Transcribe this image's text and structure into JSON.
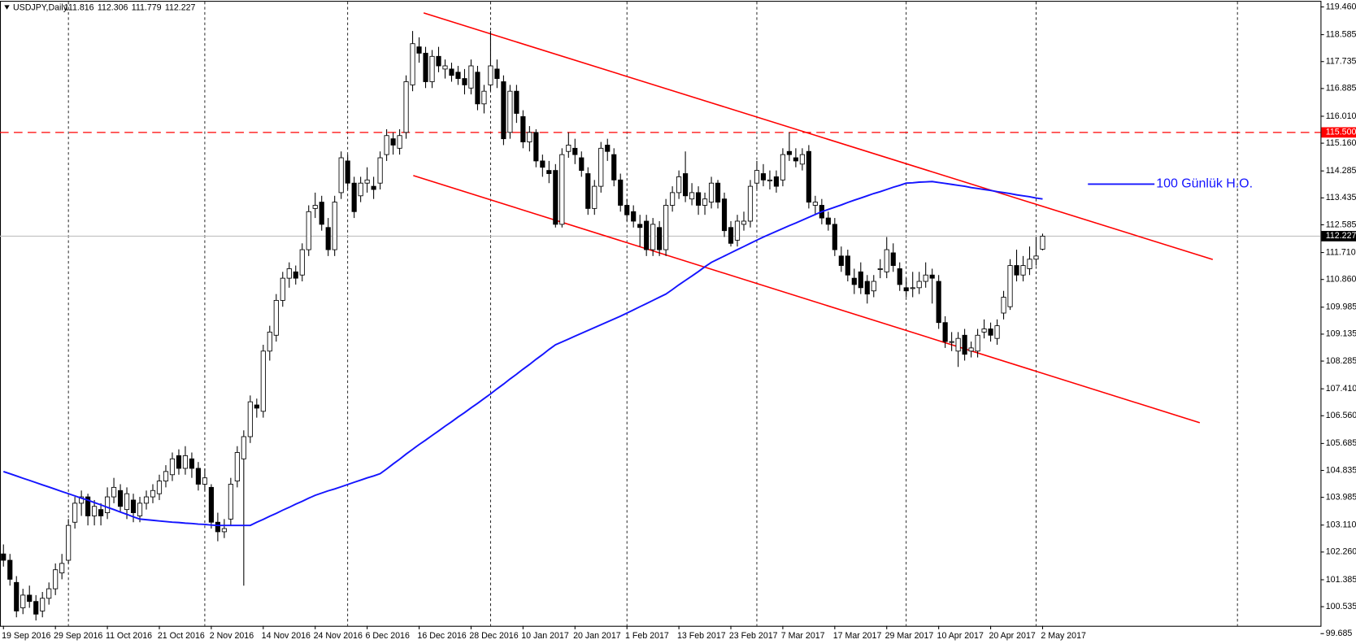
{
  "chart_data": {
    "type": "candlestick",
    "title": "USDJPY,Daily",
    "categories": [
      "19 Sep 2016",
      null,
      null,
      null,
      null,
      null,
      null,
      null,
      "29 Sep 2016",
      null,
      null,
      null,
      null,
      null,
      null,
      null,
      "11 Oct 2016",
      null,
      null,
      null,
      null,
      null,
      null,
      null,
      "21 Oct 2016",
      null,
      null,
      null,
      null,
      null,
      null,
      null,
      "2 Nov 2016",
      null,
      null,
      null,
      null,
      null,
      null,
      null,
      "14 Nov 2016",
      null,
      null,
      null,
      null,
      null,
      null,
      null,
      "24 Nov 2016",
      null,
      null,
      null,
      null,
      null,
      null,
      null,
      "6 Dec 2016",
      null,
      null,
      null,
      null,
      null,
      null,
      null,
      "16 Dec 2016",
      null,
      null,
      null,
      null,
      null,
      null,
      null,
      "28 Dec 2016",
      null,
      null,
      null,
      null,
      null,
      null,
      null,
      "10 Jan 2017",
      null,
      null,
      null,
      null,
      null,
      null,
      null,
      "20 Jan 2017",
      null,
      null,
      null,
      null,
      null,
      null,
      null,
      "1 Feb 2017",
      null,
      null,
      null,
      null,
      null,
      null,
      null,
      "13 Feb 2017",
      null,
      null,
      null,
      null,
      null,
      null,
      null,
      "23 Feb 2017",
      null,
      null,
      null,
      null,
      null,
      null,
      null,
      "7 Mar 2017",
      null,
      null,
      null,
      null,
      null,
      null,
      null,
      "17 Mar 2017",
      null,
      null,
      null,
      null,
      null,
      null,
      null,
      "29 Mar 2017",
      null,
      null,
      null,
      null,
      null,
      null,
      null,
      "10 Apr 2017",
      null,
      null,
      null,
      null,
      null,
      null,
      null,
      "20 Apr 2017",
      null,
      null,
      null,
      null,
      null,
      null,
      null,
      "2 May 2017"
    ],
    "ohlc": [
      [
        102.2,
        102.5,
        101.8,
        102.0
      ],
      [
        102.0,
        102.2,
        101.2,
        101.4
      ],
      [
        101.3,
        101.5,
        100.2,
        100.4
      ],
      [
        100.5,
        101.1,
        100.3,
        100.9
      ],
      [
        100.9,
        101.2,
        100.5,
        100.7
      ],
      [
        100.7,
        100.9,
        100.1,
        100.3
      ],
      [
        100.4,
        101.0,
        100.2,
        100.8
      ],
      [
        100.8,
        101.3,
        100.6,
        101.1
      ],
      [
        101.1,
        101.9,
        100.9,
        101.7
      ],
      [
        101.6,
        102.2,
        101.4,
        101.9
      ],
      [
        102.0,
        103.3,
        101.9,
        103.1
      ],
      [
        103.2,
        104.0,
        103.0,
        103.8
      ],
      [
        103.8,
        104.2,
        103.4,
        104.0
      ],
      [
        104.0,
        104.1,
        103.1,
        103.4
      ],
      [
        103.4,
        103.9,
        103.1,
        103.7
      ],
      [
        103.6,
        103.8,
        103.1,
        103.4
      ],
      [
        103.5,
        104.3,
        103.3,
        104.0
      ],
      [
        104.0,
        104.6,
        103.8,
        104.3
      ],
      [
        104.2,
        104.4,
        103.5,
        103.7
      ],
      [
        103.6,
        104.3,
        103.3,
        104.1
      ],
      [
        103.9,
        104.1,
        103.2,
        103.5
      ],
      [
        103.4,
        104.0,
        103.2,
        103.8
      ],
      [
        103.8,
        104.2,
        103.6,
        104.0
      ],
      [
        104.0,
        104.4,
        103.8,
        104.2
      ],
      [
        104.1,
        104.7,
        103.9,
        104.5
      ],
      [
        104.5,
        105.0,
        104.3,
        104.8
      ],
      [
        104.7,
        105.4,
        104.5,
        105.2
      ],
      [
        105.3,
        105.5,
        104.7,
        104.9
      ],
      [
        104.9,
        105.6,
        104.7,
        105.3
      ],
      [
        105.2,
        105.4,
        104.6,
        104.9
      ],
      [
        104.9,
        105.1,
        104.2,
        104.4
      ],
      [
        104.4,
        104.9,
        104.2,
        104.6
      ],
      [
        104.3,
        104.4,
        103.0,
        103.2
      ],
      [
        103.2,
        103.5,
        102.6,
        102.9
      ],
      [
        102.9,
        103.3,
        102.7,
        103.0
      ],
      [
        103.3,
        104.6,
        103.1,
        104.4
      ],
      [
        104.5,
        105.6,
        104.3,
        105.4
      ],
      [
        105.2,
        106.1,
        101.2,
        105.9
      ],
      [
        105.9,
        107.2,
        105.7,
        107.0
      ],
      [
        106.9,
        107.1,
        106.5,
        106.8
      ],
      [
        106.7,
        108.8,
        106.5,
        108.6
      ],
      [
        108.6,
        109.4,
        108.3,
        109.2
      ],
      [
        109.1,
        110.4,
        108.9,
        110.2
      ],
      [
        110.2,
        111.1,
        110.0,
        110.9
      ],
      [
        110.9,
        111.4,
        110.6,
        111.2
      ],
      [
        111.1,
        111.3,
        110.7,
        110.9
      ],
      [
        111.0,
        112.0,
        110.8,
        111.8
      ],
      [
        111.8,
        113.2,
        111.6,
        113.0
      ],
      [
        113.1,
        113.6,
        112.8,
        113.2
      ],
      [
        113.3,
        113.5,
        112.4,
        112.6
      ],
      [
        112.5,
        112.8,
        111.6,
        111.8
      ],
      [
        111.8,
        113.5,
        111.6,
        113.3
      ],
      [
        113.6,
        114.9,
        113.4,
        114.7
      ],
      [
        114.6,
        114.8,
        113.7,
        113.9
      ],
      [
        113.9,
        114.1,
        112.8,
        113.0
      ],
      [
        113.5,
        114.1,
        113.3,
        113.9
      ],
      [
        113.9,
        114.4,
        113.6,
        114.0
      ],
      [
        113.8,
        114.1,
        113.4,
        113.7
      ],
      [
        113.9,
        114.9,
        113.7,
        114.7
      ],
      [
        114.8,
        115.6,
        114.6,
        115.4
      ],
      [
        115.3,
        115.5,
        114.8,
        115.1
      ],
      [
        115.0,
        115.6,
        114.8,
        115.4
      ],
      [
        115.5,
        117.3,
        115.3,
        117.1
      ],
      [
        117.0,
        118.7,
        116.8,
        118.3
      ],
      [
        118.2,
        118.5,
        117.7,
        118.0
      ],
      [
        118.0,
        118.2,
        116.9,
        117.1
      ],
      [
        117.1,
        118.1,
        116.9,
        117.9
      ],
      [
        117.9,
        118.2,
        117.4,
        117.6
      ],
      [
        117.5,
        117.8,
        117.2,
        117.6
      ],
      [
        117.5,
        117.7,
        117.1,
        117.3
      ],
      [
        117.4,
        117.6,
        117.0,
        117.2
      ],
      [
        117.2,
        117.5,
        116.7,
        117.0
      ],
      [
        116.9,
        117.8,
        116.7,
        117.6
      ],
      [
        117.4,
        117.6,
        116.2,
        116.4
      ],
      [
        116.4,
        117.0,
        116.1,
        116.8
      ],
      [
        117.0,
        118.7,
        116.8,
        117.6
      ],
      [
        117.5,
        117.8,
        116.9,
        117.2
      ],
      [
        117.1,
        117.3,
        115.1,
        115.3
      ],
      [
        115.5,
        117.0,
        115.3,
        116.8
      ],
      [
        116.8,
        117.0,
        115.8,
        116.1
      ],
      [
        116.0,
        116.2,
        115.0,
        115.2
      ],
      [
        115.2,
        115.7,
        114.9,
        115.5
      ],
      [
        115.5,
        115.6,
        114.4,
        114.6
      ],
      [
        114.6,
        114.8,
        114.1,
        114.4
      ],
      [
        114.3,
        114.6,
        113.9,
        114.2
      ],
      [
        114.3,
        114.5,
        112.5,
        112.6
      ],
      [
        112.6,
        115.0,
        112.5,
        114.8
      ],
      [
        114.9,
        115.5,
        114.7,
        115.1
      ],
      [
        115.0,
        115.3,
        114.5,
        114.8
      ],
      [
        114.7,
        114.9,
        114.1,
        114.3
      ],
      [
        114.2,
        114.4,
        112.9,
        113.1
      ],
      [
        113.1,
        114.0,
        112.9,
        113.8
      ],
      [
        113.8,
        115.2,
        113.6,
        115.0
      ],
      [
        115.1,
        115.3,
        114.6,
        114.9
      ],
      [
        114.8,
        115.0,
        113.8,
        114.0
      ],
      [
        114.0,
        114.2,
        113.0,
        113.2
      ],
      [
        113.2,
        113.4,
        112.7,
        112.9
      ],
      [
        113.0,
        113.2,
        112.5,
        112.7
      ],
      [
        112.6,
        112.9,
        111.9,
        112.5
      ],
      [
        112.7,
        112.9,
        111.6,
        111.8
      ],
      [
        111.8,
        112.8,
        111.6,
        112.6
      ],
      [
        112.5,
        112.7,
        111.6,
        111.8
      ],
      [
        111.8,
        113.4,
        111.6,
        113.2
      ],
      [
        113.2,
        113.8,
        113.0,
        113.6
      ],
      [
        113.6,
        114.3,
        113.4,
        114.1
      ],
      [
        114.2,
        114.9,
        113.3,
        113.5
      ],
      [
        113.4,
        113.9,
        113.2,
        113.6
      ],
      [
        113.6,
        113.8,
        112.9,
        113.2
      ],
      [
        113.2,
        113.6,
        112.9,
        113.4
      ],
      [
        113.3,
        114.1,
        113.1,
        113.9
      ],
      [
        113.9,
        114.0,
        113.1,
        113.3
      ],
      [
        113.4,
        113.6,
        112.2,
        112.4
      ],
      [
        112.5,
        112.7,
        111.9,
        112.0
      ],
      [
        112.1,
        112.9,
        111.9,
        112.7
      ],
      [
        112.6,
        113.0,
        112.4,
        112.7
      ],
      [
        112.7,
        114.0,
        112.5,
        113.8
      ],
      [
        113.9,
        114.6,
        113.7,
        114.3
      ],
      [
        114.2,
        114.5,
        113.8,
        114.0
      ],
      [
        114.0,
        114.3,
        113.7,
        114.0
      ],
      [
        114.1,
        114.3,
        113.6,
        113.8
      ],
      [
        114.0,
        115.0,
        113.8,
        114.8
      ],
      [
        114.9,
        115.5,
        114.6,
        114.8
      ],
      [
        114.7,
        115.0,
        114.4,
        114.6
      ],
      [
        114.5,
        115.0,
        114.3,
        114.8
      ],
      [
        114.9,
        115.1,
        113.1,
        113.3
      ],
      [
        113.2,
        113.5,
        112.9,
        113.3
      ],
      [
        113.2,
        113.4,
        112.6,
        112.8
      ],
      [
        112.8,
        113.0,
        112.4,
        112.6
      ],
      [
        112.6,
        112.8,
        111.6,
        111.8
      ],
      [
        111.6,
        111.9,
        111.1,
        111.3
      ],
      [
        111.6,
        111.8,
        110.8,
        111.0
      ],
      [
        110.9,
        111.2,
        110.4,
        110.7
      ],
      [
        111.1,
        111.4,
        110.4,
        110.6
      ],
      [
        110.8,
        111.0,
        110.1,
        110.4
      ],
      [
        110.5,
        111.0,
        110.3,
        110.8
      ],
      [
        111.2,
        111.5,
        110.9,
        111.2
      ],
      [
        111.1,
        112.2,
        110.9,
        111.8
      ],
      [
        111.7,
        112.0,
        111.1,
        111.3
      ],
      [
        111.2,
        111.4,
        110.5,
        110.7
      ],
      [
        110.6,
        110.9,
        110.3,
        110.5
      ],
      [
        110.6,
        111.1,
        110.3,
        110.6
      ],
      [
        110.6,
        111.1,
        110.4,
        110.8
      ],
      [
        110.8,
        111.4,
        110.6,
        111.0
      ],
      [
        111.0,
        111.2,
        110.1,
        110.9
      ],
      [
        110.8,
        111.0,
        109.3,
        109.5
      ],
      [
        109.5,
        109.7,
        108.7,
        108.9
      ],
      [
        108.9,
        109.2,
        108.6,
        108.9
      ],
      [
        108.6,
        109.2,
        108.1,
        109.0
      ],
      [
        109.1,
        109.3,
        108.3,
        108.5
      ],
      [
        108.6,
        108.9,
        108.4,
        108.7
      ],
      [
        108.6,
        109.3,
        108.4,
        109.1
      ],
      [
        109.2,
        109.6,
        109.0,
        109.3
      ],
      [
        109.3,
        109.5,
        108.9,
        109.1
      ],
      [
        109.0,
        109.6,
        108.8,
        109.4
      ],
      [
        109.8,
        110.5,
        109.6,
        110.3
      ],
      [
        110.0,
        111.5,
        109.9,
        111.3
      ],
      [
        111.3,
        111.8,
        110.8,
        111.0
      ],
      [
        111.0,
        111.6,
        110.8,
        111.3
      ],
      [
        111.2,
        111.9,
        111.0,
        111.5
      ],
      [
        111.5,
        112.2,
        111.3,
        111.6
      ],
      [
        111.816,
        112.306,
        111.779,
        112.227
      ]
    ],
    "series": [
      {
        "name": "100 Günlük H.O.",
        "color": "#1414ff",
        "values": [
          104.8,
          104.73,
          104.66,
          104.59,
          104.52,
          104.45,
          104.38,
          104.31,
          104.24,
          104.17,
          104.1,
          104.03,
          103.96,
          103.9,
          103.82,
          103.75,
          103.67,
          103.6,
          103.52,
          103.45,
          103.37,
          103.3,
          103.28,
          103.26,
          103.24,
          103.22,
          103.2,
          103.19,
          103.17,
          103.16,
          103.14,
          103.13,
          103.11,
          103.1,
          103.1,
          103.1,
          103.1,
          103.1,
          103.1,
          103.2,
          103.29,
          103.39,
          103.48,
          103.58,
          103.67,
          103.77,
          103.86,
          103.96,
          104.05,
          104.12,
          104.19,
          104.25,
          104.32,
          104.39,
          104.46,
          104.53,
          104.6,
          104.66,
          104.73,
          104.88,
          105.04,
          105.19,
          105.35,
          105.5,
          105.65,
          105.79,
          105.94,
          106.08,
          106.23,
          106.37,
          106.52,
          106.66,
          106.81,
          106.95,
          107.1,
          107.25,
          107.41,
          107.56,
          107.72,
          107.87,
          108.03,
          108.18,
          108.34,
          108.49,
          108.65,
          108.8,
          108.89,
          108.98,
          109.07,
          109.16,
          109.25,
          109.34,
          109.43,
          109.52,
          109.61,
          109.7,
          109.8,
          109.9,
          110.0,
          110.1,
          110.2,
          110.3,
          110.4,
          110.54,
          110.69,
          110.83,
          110.97,
          111.11,
          111.26,
          111.4,
          111.5,
          111.6,
          111.7,
          111.8,
          111.9,
          112.0,
          112.1,
          112.2,
          112.29,
          112.38,
          112.47,
          112.56,
          112.64,
          112.73,
          112.82,
          112.91,
          113.0,
          113.07,
          113.14,
          113.21,
          113.29,
          113.36,
          113.43,
          113.5,
          113.57,
          113.63,
          113.7,
          113.77,
          113.83,
          113.9,
          113.91,
          113.93,
          113.94,
          113.95,
          113.92,
          113.89,
          113.86,
          113.83,
          113.8,
          113.76,
          113.73,
          113.7,
          113.67,
          113.63,
          113.6,
          113.57,
          113.53,
          113.5,
          113.47,
          113.43,
          113.4
        ]
      }
    ],
    "channels": [
      {
        "color": "#ff0000",
        "x": [
          64.7,
          186.2
        ],
        "y": [
          119.27,
          111.49
        ]
      },
      {
        "color": "#ff0000",
        "x": [
          63.1,
          184.2
        ],
        "y": [
          114.14,
          106.34
        ]
      }
    ],
    "level": {
      "value": 115.5,
      "label": "115.500",
      "color": "#ff0000"
    },
    "ylim": [
      99.685,
      119.46
    ],
    "yticks": [
      {
        "value": 119.46,
        "label": "119.460"
      },
      118.585,
      117.735,
      116.885,
      {
        "value": 116.01,
        "label": "116.010"
      },
      {
        "value": 115.16,
        "label": "115.160"
      },
      114.285,
      113.435,
      112.585,
      {
        "value": 111.71,
        "label": "111.710"
      },
      {
        "value": 110.86,
        "label": "110.860"
      },
      109.985,
      109.135,
      108.285,
      {
        "value": 107.41,
        "label": "107.410"
      },
      {
        "value": 106.56,
        "label": "106.560"
      },
      105.685,
      104.835,
      103.985,
      {
        "value": 103.11,
        "label": "103.110"
      },
      {
        "value": 102.26,
        "label": "102.260"
      },
      101.385,
      100.535,
      99.685
    ],
    "xgrid": [
      10,
      31,
      53,
      75,
      96,
      116,
      139,
      159,
      190
    ]
  }
}
